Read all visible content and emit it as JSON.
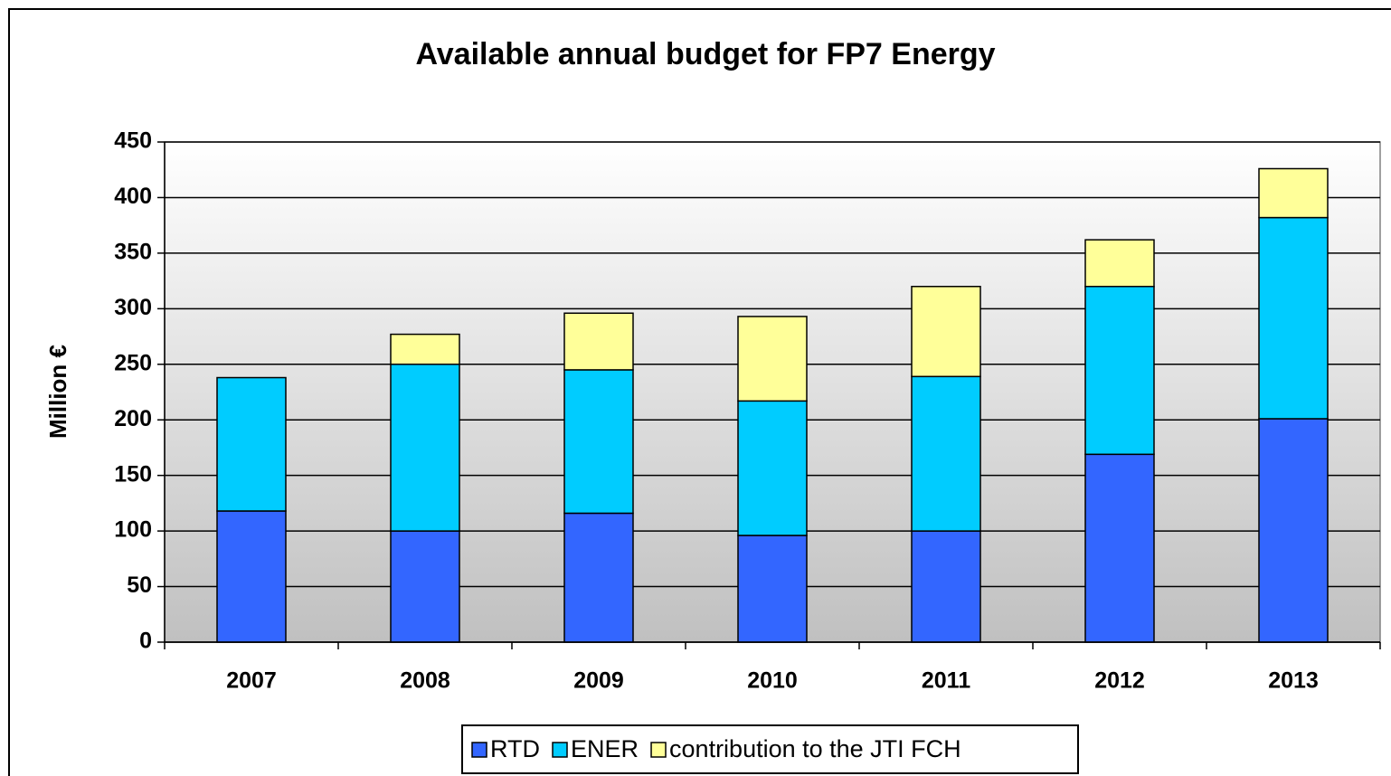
{
  "chart_data": {
    "type": "stacked_bar",
    "title": "Available annual budget for FP7 Energy",
    "y_label": "Million €",
    "categories": [
      "2007",
      "2008",
      "2009",
      "2010",
      "2011",
      "2012",
      "2013"
    ],
    "series": [
      {
        "name": "RTD",
        "color": "#3366ff",
        "values": [
          118,
          100,
          116,
          96,
          100,
          169,
          201
        ]
      },
      {
        "name": "ENER",
        "color": "#00ccff",
        "values": [
          120,
          150,
          129,
          121,
          139,
          151,
          181
        ]
      },
      {
        "name": "contribution to the JTI FCH",
        "color": "#ffff99",
        "values": [
          0,
          27,
          51,
          76,
          81,
          42,
          44
        ]
      }
    ],
    "ylim": [
      0,
      450
    ],
    "yticks": [
      0,
      50,
      100,
      150,
      200,
      250,
      300,
      350,
      400,
      450
    ],
    "grid": true,
    "legend": "bottom"
  }
}
